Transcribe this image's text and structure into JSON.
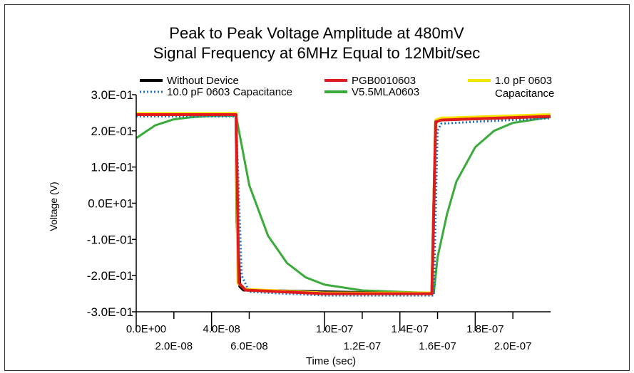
{
  "chart_data": {
    "type": "line",
    "title": "Peak to Peak Voltage Amplitude at 480mV",
    "subtitle": "Signal Frequency at 6MHz Equal to 12Mbit/sec",
    "xlabel": "Time (sec)",
    "ylabel": "Voltage (V)",
    "xlim": [
      0,
      2.2e-07
    ],
    "ylim": [
      -0.3,
      0.3
    ],
    "grid": false,
    "legend_position": "top",
    "y_tick_labels": [
      "3.0E-01",
      "2.0E-01",
      "1.0E-01",
      "0.0E+01",
      "-1.0E-01",
      "-2.0E-01",
      "-3.0E-01"
    ],
    "y_tick_values": [
      0.3,
      0.2,
      0.1,
      0.0,
      -0.1,
      -0.2,
      -0.3
    ],
    "x_tick_labels_top": [
      "0.0E+00",
      "4.0E-08",
      "1.0E-07",
      "1.4E-07",
      "1.8E-07"
    ],
    "x_tick_values_top": [
      0,
      4e-08,
      1e-07,
      1.4e-07,
      1.8e-07
    ],
    "x_tick_labels_bottom": [
      "2.0E-08",
      "6.0E-08",
      "1.2E-07",
      "1.6E-07",
      "2.0E-07"
    ],
    "x_tick_values_bottom": [
      2e-08,
      6e-08,
      1.2e-07,
      1.6e-07,
      2e-07
    ],
    "series": [
      {
        "name": "Without Device",
        "color": "#000000",
        "style": "solid",
        "x": [
          0,
          5.3e-08,
          5.35e-08,
          5.5e-08,
          5.7e-08,
          1e-07,
          1.55e-07,
          1.57e-07,
          1.59e-07,
          1.6e-07,
          2.2e-07
        ],
        "y": [
          0.245,
          0.245,
          -0.05,
          -0.23,
          -0.24,
          -0.245,
          -0.25,
          -0.25,
          0.22,
          0.23,
          0.24
        ]
      },
      {
        "name": "10.0 pF 0603 Capacitance",
        "color": "#1f6fc4",
        "style": "dotted",
        "x": [
          0,
          5.3e-08,
          5.6e-08,
          6e-08,
          1e-07,
          1.58e-07,
          1.6e-07,
          1.62e-07,
          1.8e-07,
          2.2e-07
        ],
        "y": [
          0.24,
          0.24,
          -0.2,
          -0.245,
          -0.255,
          -0.255,
          0.2,
          0.22,
          0.225,
          0.235
        ]
      },
      {
        "name": "PGB0010603",
        "color": "#e01b1b",
        "style": "solid",
        "x": [
          0,
          5.3e-08,
          5.45e-08,
          5.8e-08,
          1e-07,
          1.57e-07,
          1.59e-07,
          1.62e-07,
          2.2e-07
        ],
        "y": [
          0.245,
          0.245,
          -0.22,
          -0.24,
          -0.25,
          -0.25,
          0.225,
          0.23,
          0.24
        ]
      },
      {
        "name": "V5.5MLA0603",
        "color": "#3aaa3a",
        "style": "solid",
        "x": [
          0,
          1e-08,
          2e-08,
          3e-08,
          4e-08,
          5.3e-08,
          6e-08,
          7e-08,
          8e-08,
          9e-08,
          1e-07,
          1.2e-07,
          1.4e-07,
          1.58e-07,
          1.6e-07,
          1.65e-07,
          1.7e-07,
          1.8e-07,
          1.9e-07,
          2e-07,
          2.2e-07
        ],
        "y": [
          0.18,
          0.215,
          0.232,
          0.238,
          0.241,
          0.242,
          0.05,
          -0.09,
          -0.165,
          -0.205,
          -0.225,
          -0.241,
          -0.245,
          -0.248,
          -0.15,
          -0.03,
          0.06,
          0.155,
          0.2,
          0.222,
          0.238
        ]
      },
      {
        "name": "1.0 pF 0603 Capacitance",
        "color": "#f5e400",
        "style": "solid",
        "x": [
          0,
          5.3e-08,
          5.4e-08,
          5.8e-08,
          1e-07,
          1.57e-07,
          1.59e-07,
          1.62e-07,
          2.2e-07
        ],
        "y": [
          0.248,
          0.248,
          -0.22,
          -0.238,
          -0.248,
          -0.248,
          0.23,
          0.235,
          0.245
        ]
      }
    ]
  }
}
